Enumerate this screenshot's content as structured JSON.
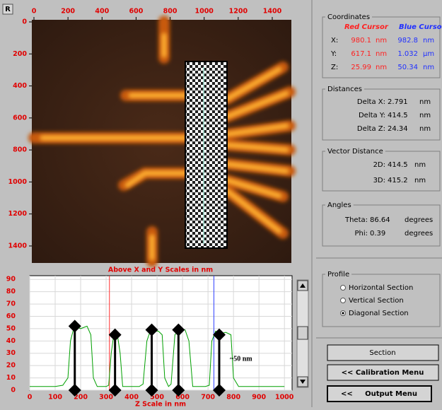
{
  "image_view": {
    "button": "R",
    "xticks": [
      0,
      200,
      400,
      600,
      800,
      1000,
      1200,
      1400
    ],
    "yticks": [
      0,
      200,
      400,
      600,
      800,
      1000,
      1200,
      1400
    ]
  },
  "coordinates": {
    "title": "Coordinates",
    "headers": [
      "Red Cursor",
      "Blue Cursor"
    ],
    "rows": [
      {
        "axis": "X:",
        "red": "980.1",
        "red_unit": "nm",
        "blue": "982.8",
        "blue_unit": "nm"
      },
      {
        "axis": "Y:",
        "red": "617.1",
        "red_unit": "nm",
        "blue": "1.032",
        "blue_unit": "µm"
      },
      {
        "axis": "Z:",
        "red": "25.99",
        "red_unit": "nm",
        "blue": "50.34",
        "blue_unit": "nm"
      }
    ]
  },
  "distances": {
    "title": "Distances",
    "rows": [
      {
        "label": "Delta X:",
        "value": "2.791",
        "unit": "nm"
      },
      {
        "label": "Delta Y:",
        "value": "414.5",
        "unit": "nm"
      },
      {
        "label": "Delta Z:",
        "value": "24.34",
        "unit": "nm"
      }
    ]
  },
  "vector_distance": {
    "title": "Vector Distance",
    "rows": [
      {
        "label": "2D:",
        "value": "414.5",
        "unit": "nm"
      },
      {
        "label": "3D:",
        "value": "415.2",
        "unit": "nm"
      }
    ]
  },
  "angles": {
    "title": "Angles",
    "rows": [
      {
        "label": "Theta:",
        "value": "86.64",
        "unit": "degrees"
      },
      {
        "label": "Phi:",
        "value": "0.39",
        "unit": "degrees"
      }
    ]
  },
  "profile": {
    "title": "Profile",
    "options": [
      "Horizontal Section",
      "Vertical Section",
      "Diagonal Section"
    ],
    "selected": 2
  },
  "buttons": [
    "Section",
    "<< Calibration Menu",
    "<<     Output Menu"
  ],
  "chart_data": {
    "type": "line",
    "title": "Above X and Y Scales in nm",
    "xlabel": "Z Scale in nm",
    "xlim": [
      0,
      1030
    ],
    "ylim": [
      0,
      93
    ],
    "xticks": [
      0,
      100,
      200,
      300,
      400,
      500,
      600,
      700,
      800,
      900,
      1000
    ],
    "yticks": [
      0,
      10,
      20,
      30,
      40,
      50,
      60,
      70,
      80,
      90
    ],
    "grid": true,
    "series": [
      {
        "color": "#00a000",
        "x": [
          0,
          60,
          100,
          130,
          150,
          160,
          175,
          200,
          225,
          240,
          250,
          265,
          300,
          310,
          320,
          330,
          345,
          355,
          365,
          400,
          430,
          445,
          460,
          475,
          490,
          505,
          520,
          530,
          545,
          555,
          570,
          590,
          610,
          625,
          640,
          690,
          705,
          715,
          730,
          750,
          770,
          790,
          800,
          820,
          900,
          1000
        ],
        "values": [
          3,
          3,
          3,
          4,
          10,
          40,
          52,
          50,
          52,
          45,
          10,
          3,
          3,
          4,
          30,
          45,
          44,
          30,
          3,
          3,
          3,
          5,
          40,
          49,
          48,
          48,
          45,
          10,
          3,
          5,
          45,
          50,
          49,
          40,
          3,
          3,
          4,
          40,
          48,
          46,
          47,
          45,
          10,
          3,
          3,
          3
        ]
      }
    ],
    "cursors": {
      "red": 313,
      "blue": 723
    },
    "markers": [
      {
        "x": 177,
        "top": 52,
        "bottom": 0
      },
      {
        "x": 335,
        "top": 45,
        "bottom": 0
      },
      {
        "x": 479,
        "top": 49,
        "bottom": 0
      },
      {
        "x": 584,
        "top": 49,
        "bottom": 0
      },
      {
        "x": 744,
        "top": 45,
        "bottom": 0
      }
    ],
    "annotation": "~50 nm"
  }
}
